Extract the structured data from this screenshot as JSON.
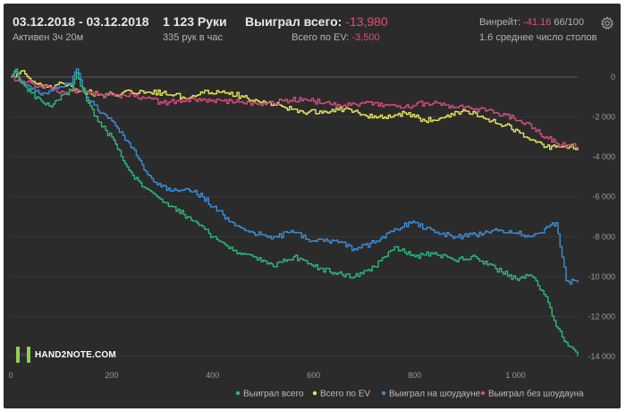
{
  "header": {
    "date_range": "03.12.2018 - 03.12.2018",
    "active_time": "Активен 3ч 20м",
    "hands": "1 123 Руки",
    "hands_per_hour": "335 рук в час",
    "won_total_label": "Выиграл всего:",
    "won_total_value": "-13,980",
    "ev_total_label": "Всего по EV:",
    "ev_total_value": "-3,500",
    "winrate_label": "Винрейт:",
    "winrate_value": "-41.16",
    "winrate_sample": "66/100",
    "avg_tables": "1.6 среднее число столов",
    "settings_icon": "gear-icon"
  },
  "logo": {
    "text": "HAND2NOTE.COM",
    "icon": "hand2note-logo-icon"
  },
  "chart_data": {
    "type": "line",
    "title": "",
    "xlabel": "",
    "ylabel": "",
    "xlim": [
      0,
      1123
    ],
    "ylim": [
      -14000,
      0
    ],
    "x_ticks": [
      0,
      200,
      400,
      600,
      800,
      1000
    ],
    "x_tick_labels": [
      "0",
      "200",
      "400",
      "600",
      "800",
      "1 000"
    ],
    "y_ticks": [
      0,
      -2000,
      -4000,
      -6000,
      -8000,
      -10000,
      -12000,
      -14000
    ],
    "y_tick_labels": [
      "0",
      "-2 000",
      "-4 000",
      "-6 000",
      "-8 000",
      "-10 000",
      "-12 000",
      "-14 000"
    ],
    "grid": true,
    "legend_position": "bottom-right",
    "series": [
      {
        "name": "Выиграл всего",
        "color": "#2eb87a",
        "x": [
          0,
          10,
          20,
          30,
          40,
          60,
          80,
          100,
          120,
          130,
          150,
          180,
          200,
          230,
          260,
          290,
          320,
          350,
          380,
          400,
          440,
          480,
          520,
          560,
          600,
          640,
          680,
          720,
          760,
          800,
          840,
          880,
          920,
          960,
          1000,
          1020,
          1040,
          1060,
          1080,
          1100,
          1123
        ],
        "y": [
          0,
          400,
          -300,
          -500,
          -800,
          -1200,
          -1500,
          -900,
          -700,
          200,
          -1200,
          -2500,
          -3000,
          -4500,
          -5500,
          -6000,
          -6500,
          -7000,
          -7500,
          -8000,
          -8700,
          -9000,
          -9500,
          -9000,
          -9500,
          -9800,
          -10000,
          -9500,
          -8500,
          -9000,
          -8800,
          -9200,
          -9000,
          -9600,
          -10100,
          -9900,
          -10200,
          -11000,
          -12500,
          -13300,
          -13980
        ]
      },
      {
        "name": "Всего по EV",
        "color": "#e8e65a",
        "x": [
          0,
          20,
          40,
          60,
          80,
          100,
          140,
          180,
          220,
          260,
          300,
          340,
          380,
          420,
          460,
          500,
          540,
          580,
          620,
          660,
          700,
          740,
          780,
          820,
          860,
          900,
          940,
          980,
          1020,
          1060,
          1090,
          1123
        ],
        "y": [
          0,
          300,
          -200,
          -400,
          -600,
          -300,
          -700,
          -900,
          -800,
          -700,
          -800,
          -1000,
          -800,
          -700,
          -1000,
          -1200,
          -1500,
          -1800,
          -1700,
          -1600,
          -1900,
          -2000,
          -1800,
          -2200,
          -2000,
          -1700,
          -2100,
          -2400,
          -3000,
          -3500,
          -3500,
          -3500
        ]
      },
      {
        "name": "Выиграл на шоудауне",
        "color": "#3d8ed8",
        "x": [
          0,
          10,
          20,
          40,
          60,
          80,
          100,
          120,
          130,
          150,
          180,
          200,
          230,
          260,
          290,
          320,
          350,
          380,
          400,
          440,
          480,
          520,
          560,
          600,
          640,
          680,
          720,
          760,
          800,
          840,
          880,
          920,
          960,
          1000,
          1030,
          1050,
          1080,
          1100,
          1123
        ],
        "y": [
          0,
          300,
          -200,
          -600,
          -900,
          -700,
          -500,
          -300,
          400,
          -1000,
          -1800,
          -2200,
          -3200,
          -4400,
          -5400,
          -5700,
          -5600,
          -6000,
          -6500,
          -7300,
          -7800,
          -8000,
          -7800,
          -8200,
          -8200,
          -8600,
          -8300,
          -7600,
          -7300,
          -7800,
          -8000,
          -7900,
          -7600,
          -7800,
          -8000,
          -7800,
          -7300,
          -10200,
          -10300
        ]
      },
      {
        "name": "Выиграл без шоудауна",
        "color": "#d84b7e",
        "x": [
          0,
          20,
          40,
          60,
          80,
          100,
          140,
          180,
          220,
          260,
          300,
          340,
          380,
          420,
          460,
          500,
          540,
          580,
          620,
          660,
          700,
          740,
          780,
          820,
          860,
          900,
          940,
          980,
          1020,
          1060,
          1090,
          1123
        ],
        "y": [
          0,
          -200,
          -300,
          -500,
          -600,
          -700,
          -700,
          -900,
          -900,
          -1000,
          -1300,
          -1200,
          -1100,
          -1200,
          -1300,
          -1300,
          -1200,
          -1100,
          -1300,
          -1400,
          -1300,
          -1400,
          -1500,
          -1300,
          -1400,
          -1500,
          -1700,
          -1900,
          -2300,
          -3000,
          -3400,
          -3500
        ]
      }
    ]
  }
}
